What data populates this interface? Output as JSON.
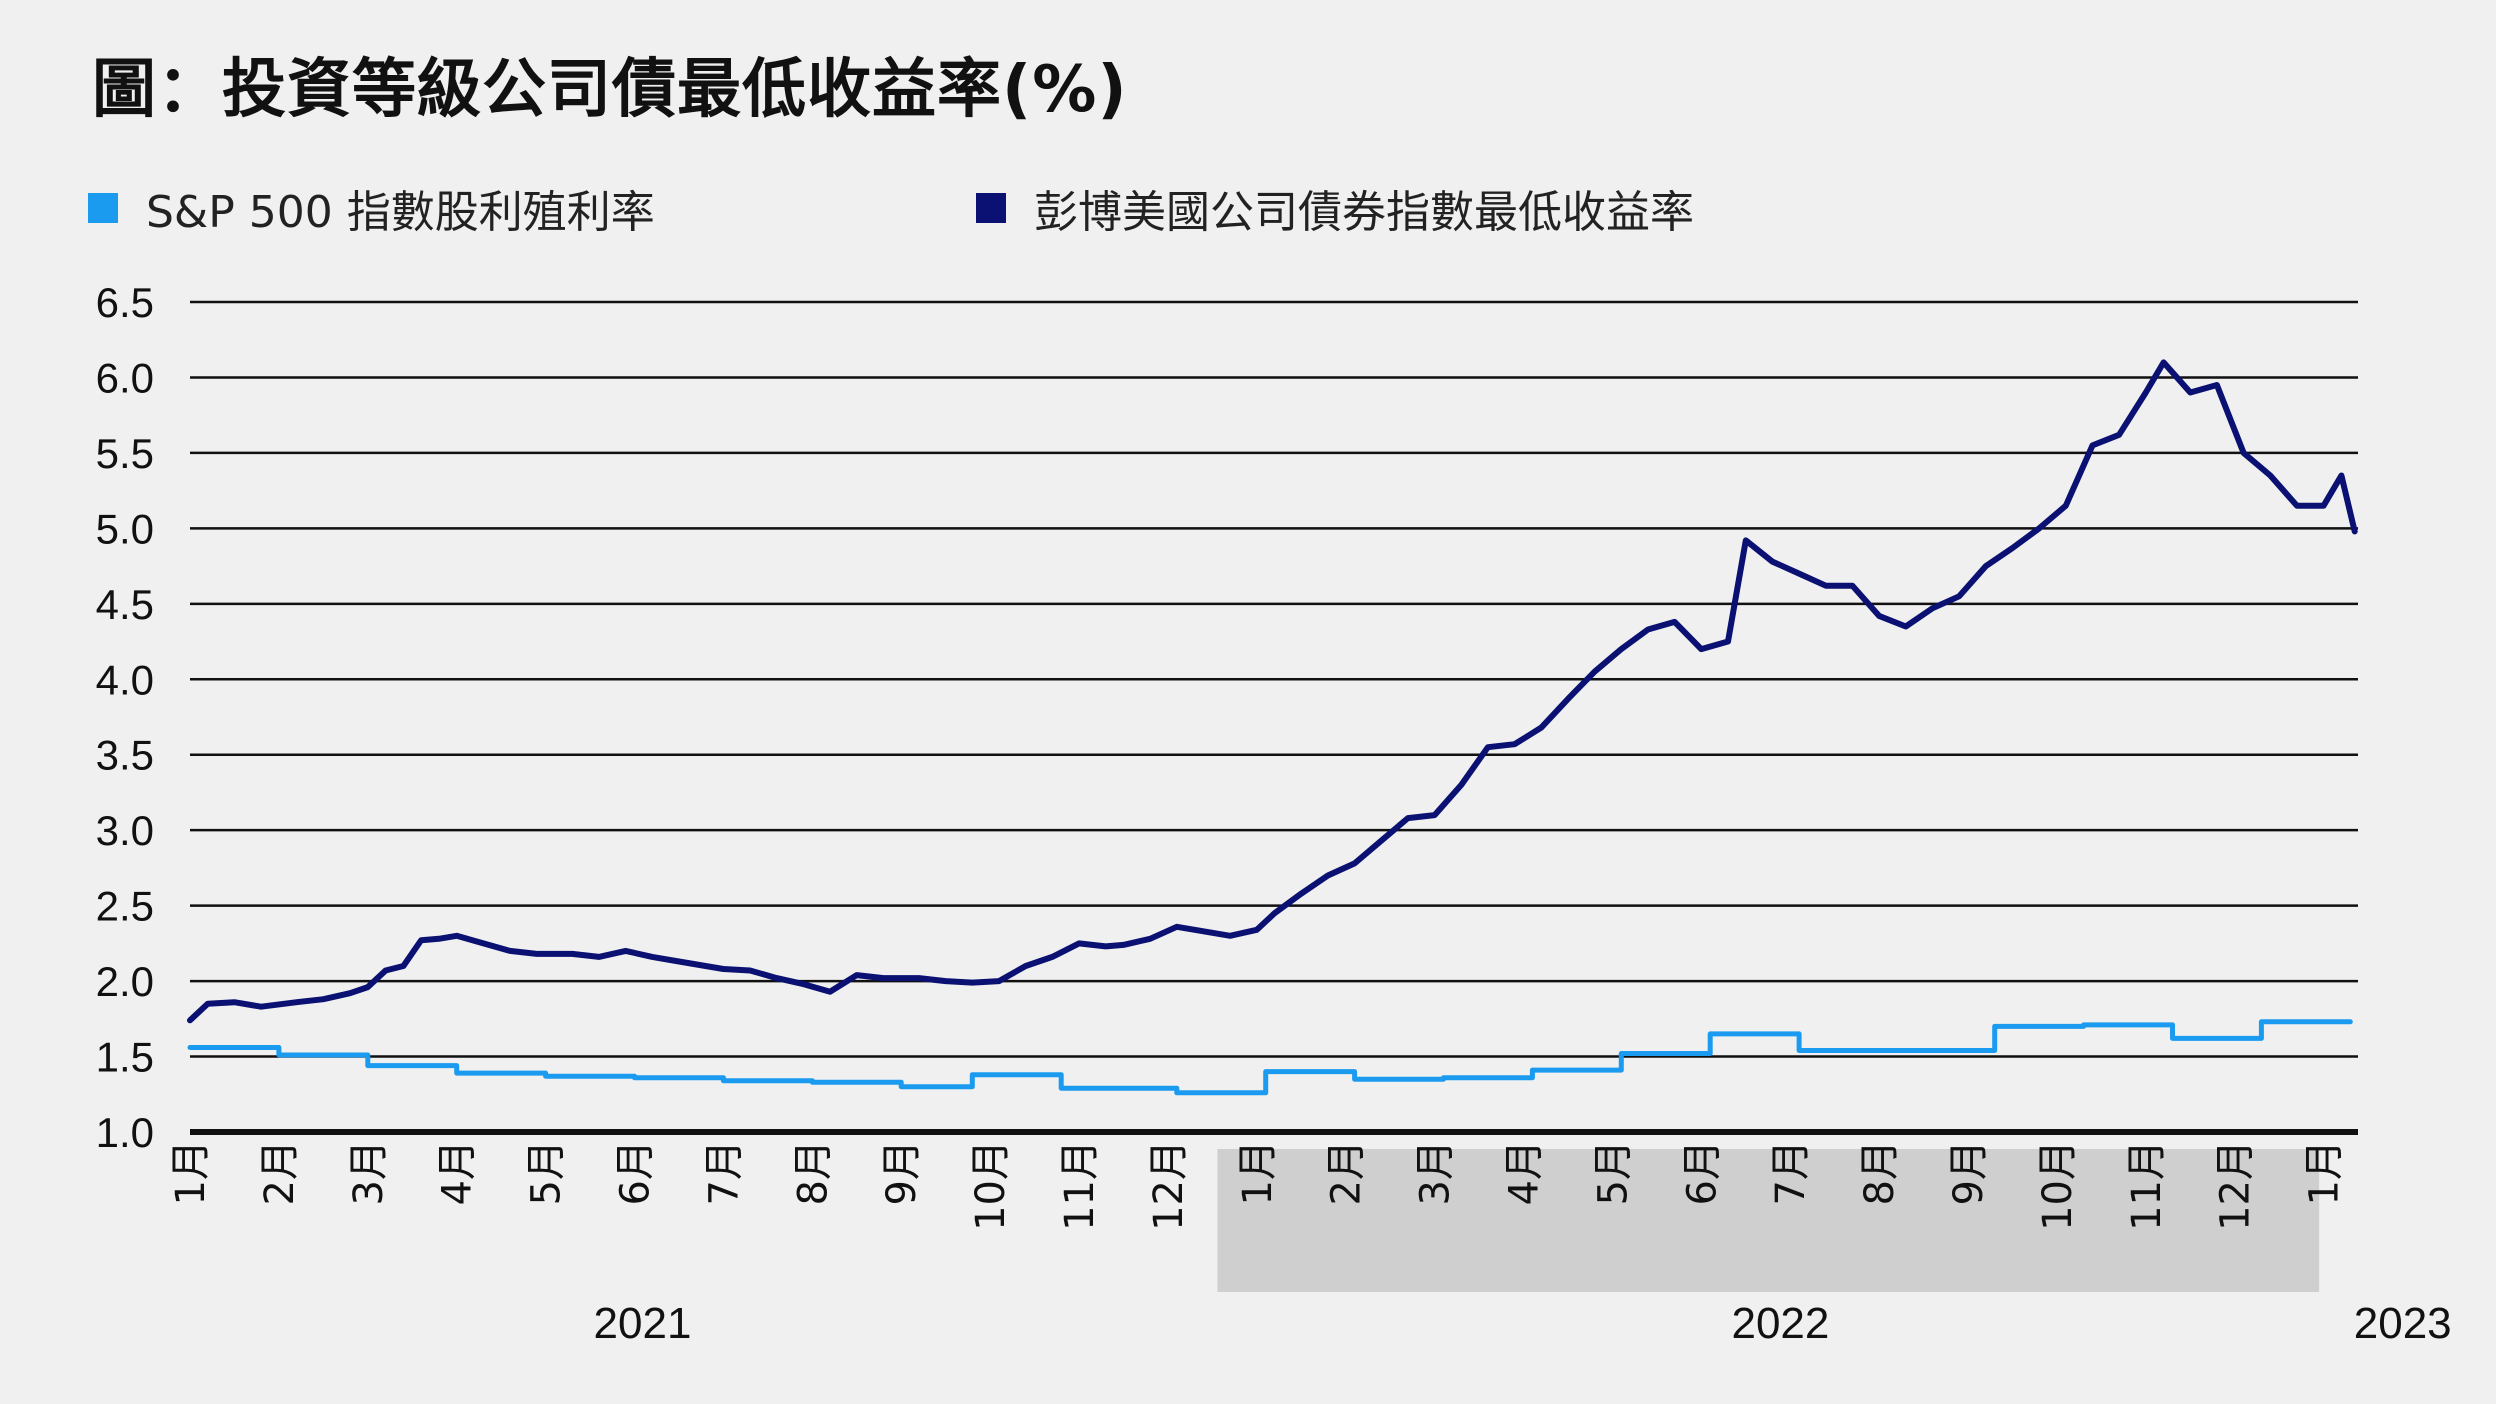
{
  "title": "圖：投資等級公司債最低收益率(%)",
  "colors": {
    "sp500": "#1a9bf0",
    "bbg": "#0a1172",
    "grid": "#111111",
    "shade": "#cfcfcf",
    "background": "#f0f0f0"
  },
  "legend": [
    {
      "label": "S&P 500 指數股利殖利率",
      "color": "#1a9bf0"
    },
    {
      "label": "彭博美國公司債券指數最低收益率",
      "color": "#0a1172"
    }
  ],
  "chart_data": {
    "type": "line",
    "title": "圖：投資等級公司債最低收益率(%)",
    "xlabel": "",
    "ylabel": "",
    "ylim": [
      1.0,
      6.5
    ],
    "yticks": [
      "6.5",
      "6.0",
      "5.5",
      "5.0",
      "4.5",
      "4.0",
      "3.5",
      "3.0",
      "2.5",
      "2.0",
      "1.5",
      "1.0"
    ],
    "grid": true,
    "legend_position": "top",
    "month_labels": [
      "1月",
      "2月",
      "3月",
      "4月",
      "5月",
      "6月",
      "7月",
      "8月",
      "9月",
      "10月",
      "11月",
      "12月",
      "1月",
      "2月",
      "3月",
      "4月",
      "5月",
      "6月",
      "7月",
      "8月",
      "9月",
      "10月",
      "11月",
      "12月",
      "1月"
    ],
    "year_labels": [
      {
        "label": "2021",
        "month_index": 5
      },
      {
        "label": "2022",
        "month_index": 17.8
      },
      {
        "label": "2023",
        "month_index": 24.8
      }
    ],
    "shaded_month_range": [
      11.85,
      23.95
    ],
    "x_range": [
      0,
      24.35
    ],
    "series": [
      {
        "name": "S&P 500 指數股利殖利率",
        "color": "#1a9bf0",
        "step": true,
        "points": [
          [
            0,
            1.56
          ],
          [
            1,
            1.51
          ],
          [
            2,
            1.44
          ],
          [
            3,
            1.39
          ],
          [
            4,
            1.37
          ],
          [
            5,
            1.36
          ],
          [
            6,
            1.34
          ],
          [
            7,
            1.33
          ],
          [
            8,
            1.3
          ],
          [
            8.8,
            1.38
          ],
          [
            9.8,
            1.29
          ],
          [
            11.1,
            1.26
          ],
          [
            12.1,
            1.4
          ],
          [
            13.1,
            1.35
          ],
          [
            14.1,
            1.36
          ],
          [
            15.1,
            1.41
          ],
          [
            16.1,
            1.52
          ],
          [
            17.1,
            1.65
          ],
          [
            18.1,
            1.54
          ],
          [
            20.1,
            1.54
          ],
          [
            20.3,
            1.7
          ],
          [
            21.3,
            1.71
          ],
          [
            22.3,
            1.62
          ],
          [
            23.3,
            1.73
          ],
          [
            24.3,
            1.73
          ]
        ]
      },
      {
        "name": "彭博美國公司債券指數最低收益率",
        "color": "#0a1172",
        "step": false,
        "points": [
          [
            0,
            1.74
          ],
          [
            0.2,
            1.85
          ],
          [
            0.5,
            1.86
          ],
          [
            0.8,
            1.83
          ],
          [
            1.2,
            1.86
          ],
          [
            1.5,
            1.88
          ],
          [
            1.8,
            1.92
          ],
          [
            2.0,
            1.96
          ],
          [
            2.2,
            2.07
          ],
          [
            2.4,
            2.1
          ],
          [
            2.6,
            2.27
          ],
          [
            2.8,
            2.28
          ],
          [
            3.0,
            2.3
          ],
          [
            3.3,
            2.25
          ],
          [
            3.6,
            2.2
          ],
          [
            3.9,
            2.18
          ],
          [
            4.3,
            2.18
          ],
          [
            4.6,
            2.16
          ],
          [
            4.9,
            2.2
          ],
          [
            5.2,
            2.16
          ],
          [
            5.5,
            2.13
          ],
          [
            5.8,
            2.1
          ],
          [
            6.0,
            2.08
          ],
          [
            6.3,
            2.07
          ],
          [
            6.6,
            2.02
          ],
          [
            6.9,
            1.98
          ],
          [
            7.2,
            1.93
          ],
          [
            7.5,
            2.04
          ],
          [
            7.8,
            2.02
          ],
          [
            8.2,
            2.02
          ],
          [
            8.5,
            2.0
          ],
          [
            8.8,
            1.99
          ],
          [
            9.1,
            2.0
          ],
          [
            9.4,
            2.1
          ],
          [
            9.7,
            2.16
          ],
          [
            10.0,
            2.25
          ],
          [
            10.3,
            2.23
          ],
          [
            10.5,
            2.24
          ],
          [
            10.8,
            2.28
          ],
          [
            11.1,
            2.36
          ],
          [
            11.4,
            2.33
          ],
          [
            11.7,
            2.3
          ],
          [
            12.0,
            2.34
          ],
          [
            12.2,
            2.45
          ],
          [
            12.5,
            2.58
          ],
          [
            12.8,
            2.7
          ],
          [
            13.1,
            2.78
          ],
          [
            13.4,
            2.93
          ],
          [
            13.7,
            3.08
          ],
          [
            14.0,
            3.1
          ],
          [
            14.3,
            3.3
          ],
          [
            14.6,
            3.55
          ],
          [
            14.9,
            3.57
          ],
          [
            15.2,
            3.68
          ],
          [
            15.5,
            3.87
          ],
          [
            15.8,
            4.05
          ],
          [
            16.1,
            4.2
          ],
          [
            16.4,
            4.33
          ],
          [
            16.7,
            4.38
          ],
          [
            17.0,
            4.2
          ],
          [
            17.3,
            4.25
          ],
          [
            17.5,
            4.92
          ],
          [
            17.8,
            4.78
          ],
          [
            18.1,
            4.7
          ],
          [
            18.4,
            4.62
          ],
          [
            18.7,
            4.62
          ],
          [
            19.0,
            4.42
          ],
          [
            19.3,
            4.35
          ],
          [
            19.6,
            4.47
          ],
          [
            19.9,
            4.55
          ],
          [
            20.2,
            4.75
          ],
          [
            20.5,
            4.87
          ],
          [
            20.8,
            5.0
          ],
          [
            21.1,
            5.15
          ],
          [
            21.4,
            5.55
          ],
          [
            21.7,
            5.62
          ],
          [
            22.0,
            5.9
          ],
          [
            22.2,
            6.1
          ],
          [
            22.5,
            5.9
          ],
          [
            22.8,
            5.95
          ],
          [
            23.1,
            5.5
          ],
          [
            23.4,
            5.35
          ],
          [
            23.7,
            5.15
          ],
          [
            24.0,
            5.15
          ],
          [
            24.2,
            5.35
          ],
          [
            24.35,
            4.98
          ]
        ]
      }
    ]
  }
}
